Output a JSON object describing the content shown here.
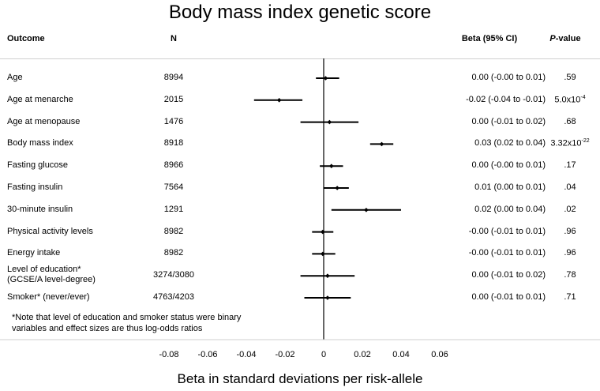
{
  "chart_data": {
    "type": "forest",
    "title": "Body mass index genetic score",
    "xlabel": "Beta in standard deviations per risk-allele",
    "xlim": [
      -0.09,
      0.07
    ],
    "xticks": [
      -0.08,
      -0.06,
      -0.04,
      -0.02,
      0,
      0.02,
      0.04,
      0.06
    ],
    "xtick_labels": [
      "-0.08",
      "-0.06",
      "-0.04",
      "-0.02",
      "0",
      "0.02",
      "0.04",
      "0.06"
    ],
    "columns": {
      "outcome": "Outcome",
      "n": "N",
      "beta": "Beta (95% CI)",
      "p_italic": "P",
      "p_rest": "-value"
    },
    "rows": [
      {
        "outcome": "Age",
        "outcome2": "",
        "n": "8994",
        "ci_text": "0.00 (-0.00 to 0.01)",
        "p": ".59",
        "p_sup": "",
        "beta": 0.001,
        "lo": -0.004,
        "hi": 0.008
      },
      {
        "outcome": "Age at menarche",
        "outcome2": "",
        "n": "2015",
        "ci_text": "-0.02 (-0.04 to -0.01)",
        "p": "5.0x10",
        "p_sup": "-4",
        "beta": -0.023,
        "lo": -0.036,
        "hi": -0.011
      },
      {
        "outcome": "Age at menopause",
        "outcome2": "",
        "n": "1476",
        "ci_text": "0.00 (-0.01 to 0.02)",
        "p": ".68",
        "p_sup": "",
        "beta": 0.003,
        "lo": -0.012,
        "hi": 0.018
      },
      {
        "outcome": "Body mass index",
        "outcome2": "",
        "n": "8918",
        "ci_text": "0.03 (0.02 to 0.04)",
        "p": "3.32x10",
        "p_sup": "-22",
        "beta": 0.03,
        "lo": 0.024,
        "hi": 0.036
      },
      {
        "outcome": "Fasting glucose",
        "outcome2": "",
        "n": "8966",
        "ci_text": "0.00 (-0.00 to 0.01)",
        "p": ".17",
        "p_sup": "",
        "beta": 0.004,
        "lo": -0.002,
        "hi": 0.01
      },
      {
        "outcome": "Fasting insulin",
        "outcome2": "",
        "n": "7564",
        "ci_text": "0.01 (0.00 to 0.01)",
        "p": ".04",
        "p_sup": "",
        "beta": 0.007,
        "lo": 0.0,
        "hi": 0.013
      },
      {
        "outcome": "30-minute insulin",
        "outcome2": "",
        "n": "1291",
        "ci_text": "0.02 (0.00 to 0.04)",
        "p": ".02",
        "p_sup": "",
        "beta": 0.022,
        "lo": 0.004,
        "hi": 0.04
      },
      {
        "outcome": "Physical activity levels",
        "outcome2": "",
        "n": "8982",
        "ci_text": "-0.00 (-0.01 to 0.01)",
        "p": ".96",
        "p_sup": "",
        "beta": -0.0005,
        "lo": -0.006,
        "hi": 0.005
      },
      {
        "outcome": "Energy intake",
        "outcome2": "",
        "n": "8982",
        "ci_text": "-0.00 (-0.01 to 0.01)",
        "p": ".96",
        "p_sup": "",
        "beta": -0.0005,
        "lo": -0.006,
        "hi": 0.006
      },
      {
        "outcome": "Level of education*",
        "outcome2": "(GCSE/A level-degree)",
        "n": "3274/3080",
        "ci_text": "0.00 (-0.01 to 0.02)",
        "p": ".78",
        "p_sup": "",
        "beta": 0.002,
        "lo": -0.012,
        "hi": 0.016
      },
      {
        "outcome": "Smoker* (never/ever)",
        "outcome2": "",
        "n": "4763/4203",
        "ci_text": "0.00 (-0.01 to 0.01)",
        "p": ".71",
        "p_sup": "",
        "beta": 0.002,
        "lo": -0.01,
        "hi": 0.014
      }
    ],
    "note": "*Note that level of education and smoker status were binary variables and effect sizes are thus log-odds ratios"
  }
}
